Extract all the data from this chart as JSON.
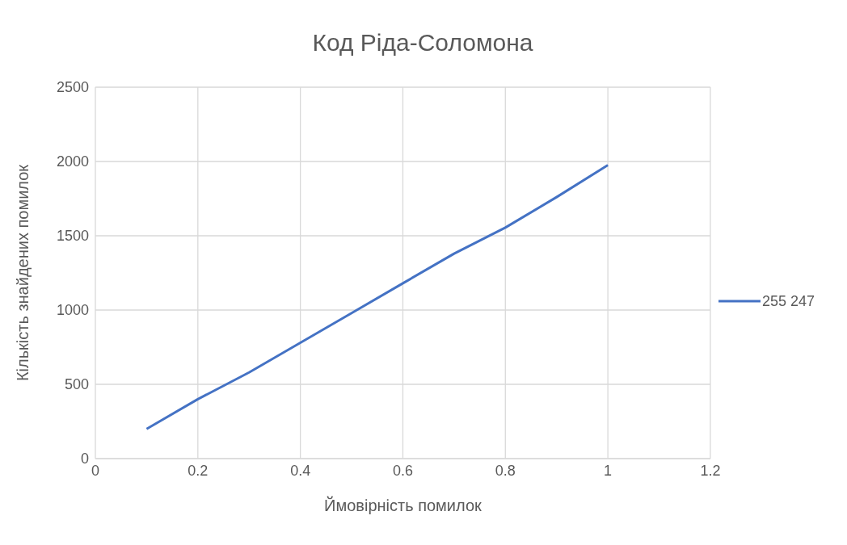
{
  "chart_data": {
    "type": "line",
    "title": "Код Ріда-Соломона",
    "xlabel": "Ймовірність помилок",
    "ylabel": "Кількість знайдених помилок",
    "x": [
      0.1,
      0.2,
      0.3,
      0.4,
      0.5,
      0.6,
      0.7,
      0.8,
      0.9,
      1.0
    ],
    "series": [
      {
        "name": "255 247",
        "color": "#4472c4",
        "values": [
          200,
          400,
          580,
          780,
          980,
          1180,
          1380,
          1555,
          1760,
          1975
        ]
      }
    ],
    "xlim": [
      0,
      1.2
    ],
    "xticks": [
      0,
      0.2,
      0.4,
      0.6,
      0.8,
      1,
      1.2
    ],
    "ylim": [
      0,
      2500
    ],
    "yticks": [
      0,
      500,
      1000,
      1500,
      2000,
      2500
    ],
    "grid": true,
    "legend": "right",
    "marker": "none",
    "line_style": "solid"
  }
}
